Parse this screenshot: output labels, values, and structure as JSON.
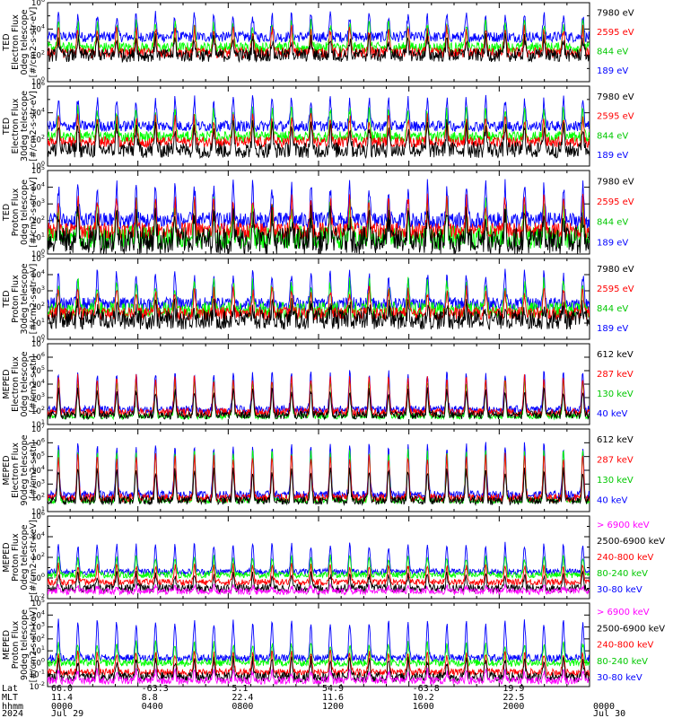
{
  "chart_data": [
    {
      "type": "line",
      "ylabel": [
        "TED",
        "Electron Flux",
        "0deg telescope",
        "[#/cm2-s-str-eV]"
      ],
      "ylog": true,
      "ylim_exp": [
        0,
        6
      ],
      "tick_exps": [
        0,
        2,
        4,
        6
      ],
      "series": [
        {
          "name": "7980 eV",
          "color": "#000000",
          "base_exp": 2.0,
          "peak_exp": 3.2,
          "noise": 0.5
        },
        {
          "name": "2595 eV",
          "color": "#ff0000",
          "base_exp": 2.2,
          "peak_exp": 4.0,
          "noise": 0.4
        },
        {
          "name": "844 eV",
          "color": "#00ff00",
          "base_exp": 2.6,
          "peak_exp": 4.4,
          "noise": 0.4
        },
        {
          "name": "189 eV",
          "color": "#0000ff",
          "base_exp": 3.4,
          "peak_exp": 5.0,
          "noise": 0.4
        }
      ]
    },
    {
      "type": "line",
      "ylabel": [
        "TED",
        "Electron Flux",
        "30deg telescope",
        "[#/cm2-s-str-eV]"
      ],
      "ylog": true,
      "ylim_exp": [
        0,
        6
      ],
      "tick_exps": [
        0,
        2,
        4,
        6
      ],
      "series": [
        {
          "name": "7980 eV",
          "color": "#000000",
          "base_exp": 1.2,
          "peak_exp": 3.0,
          "noise": 0.6
        },
        {
          "name": "2595 eV",
          "color": "#ff0000",
          "base_exp": 1.8,
          "peak_exp": 3.6,
          "noise": 0.4
        },
        {
          "name": "844 eV",
          "color": "#00ff00",
          "base_exp": 2.2,
          "peak_exp": 4.2,
          "noise": 0.4
        },
        {
          "name": "189 eV",
          "color": "#0000ff",
          "base_exp": 3.0,
          "peak_exp": 5.0,
          "noise": 0.4
        }
      ]
    },
    {
      "type": "line",
      "ylabel": [
        "TED",
        "Proton Flux",
        "0deg telescope",
        "[#/cm2-s-str-eV]"
      ],
      "ylog": true,
      "ylim_exp": [
        0,
        5
      ],
      "tick_exps": [
        0,
        1,
        2,
        3,
        4,
        5
      ],
      "series": [
        {
          "name": "7980 eV",
          "color": "#000000",
          "base_exp": 0.8,
          "peak_exp": 2.2,
          "noise": 0.8
        },
        {
          "name": "2595 eV",
          "color": "#ff0000",
          "base_exp": 1.4,
          "peak_exp": 3.2,
          "noise": 0.5
        },
        {
          "name": "844 eV",
          "color": "#00ff00",
          "base_exp": 1.0,
          "peak_exp": 2.8,
          "noise": 0.7
        },
        {
          "name": "189 eV",
          "color": "#0000ff",
          "base_exp": 2.0,
          "peak_exp": 4.0,
          "noise": 0.5
        }
      ]
    },
    {
      "type": "line",
      "ylabel": [
        "TED",
        "Proton Flux",
        "30deg telescope",
        "[#/cm2-s-str-eV]"
      ],
      "ylog": true,
      "ylim_exp": [
        0,
        5
      ],
      "tick_exps": [
        0,
        1,
        2,
        3,
        4,
        5
      ],
      "series": [
        {
          "name": "7980 eV",
          "color": "#000000",
          "base_exp": 1.2,
          "peak_exp": 2.0,
          "noise": 0.6
        },
        {
          "name": "2595 eV",
          "color": "#ff0000",
          "base_exp": 1.6,
          "peak_exp": 3.0,
          "noise": 0.4
        },
        {
          "name": "844 eV",
          "color": "#00ff00",
          "base_exp": 1.8,
          "peak_exp": 3.4,
          "noise": 0.5
        },
        {
          "name": "189 eV",
          "color": "#0000ff",
          "base_exp": 2.2,
          "peak_exp": 4.0,
          "noise": 0.4
        }
      ]
    },
    {
      "type": "line",
      "ylabel": [
        "MEPED",
        "Electron Flux",
        "0deg telescope",
        "[#/cm2-s-str]"
      ],
      "ylog": true,
      "ylim_exp": [
        1,
        7
      ],
      "tick_exps": [
        1,
        2,
        3,
        4,
        5,
        6,
        7
      ],
      "series": [
        {
          "name": "612 keV",
          "color": "#000000",
          "base_exp": 1.7,
          "peak_exp": 3.5,
          "noise": 0.3
        },
        {
          "name": "287 keV",
          "color": "#ff0000",
          "base_exp": 1.9,
          "peak_exp": 4.5,
          "noise": 0.3
        },
        {
          "name": "130 keV",
          "color": "#00ff00",
          "base_exp": 1.6,
          "peak_exp": 4.2,
          "noise": 0.2
        },
        {
          "name": "40 keV",
          "color": "#0000ff",
          "base_exp": 2.1,
          "peak_exp": 4.8,
          "noise": 0.3
        }
      ]
    },
    {
      "type": "line",
      "ylabel": [
        "MEPED",
        "Electron Flux",
        "90deg telescope",
        "[#/cm2-s-str]"
      ],
      "ylog": true,
      "ylim_exp": [
        1,
        7
      ],
      "tick_exps": [
        1,
        2,
        3,
        4,
        5,
        6,
        7
      ],
      "series": [
        {
          "name": "612 keV",
          "color": "#000000",
          "base_exp": 1.8,
          "peak_exp": 4.0,
          "noise": 0.3
        },
        {
          "name": "287 keV",
          "color": "#ff0000",
          "base_exp": 2.0,
          "peak_exp": 5.0,
          "noise": 0.3
        },
        {
          "name": "130 keV",
          "color": "#00ff00",
          "base_exp": 1.8,
          "peak_exp": 5.4,
          "noise": 0.2
        },
        {
          "name": "40 keV",
          "color": "#0000ff",
          "base_exp": 2.2,
          "peak_exp": 5.8,
          "noise": 0.3
        }
      ]
    },
    {
      "type": "line",
      "ylabel": [
        "MEPED",
        "Proton Flux",
        "0deg telescope",
        "[#/cm2-s-str-keV]"
      ],
      "ylog": true,
      "ylim_exp": [
        -2,
        6
      ],
      "tick_exps": [
        -2,
        0,
        2,
        4,
        6
      ],
      "series": [
        {
          "name": "> 6900 keV",
          "color": "#ff00ff",
          "base_exp": -1.3,
          "peak_exp": -0.8,
          "noise": 0.3
        },
        {
          "name": "2500-6900 keV",
          "color": "#000000",
          "base_exp": -1.0,
          "peak_exp": 0.3,
          "noise": 0.4
        },
        {
          "name": "240-800 keV",
          "color": "#ff0000",
          "base_exp": -0.4,
          "peak_exp": 1.2,
          "noise": 0.3
        },
        {
          "name": "80-240 keV",
          "color": "#00ff00",
          "base_exp": 0.3,
          "peak_exp": 2.0,
          "noise": 0.3
        },
        {
          "name": "30-80 keV",
          "color": "#0000ff",
          "base_exp": 0.6,
          "peak_exp": 3.2,
          "noise": 0.3
        }
      ]
    },
    {
      "type": "line",
      "ylabel": [
        "MEPED",
        "Proton Flux",
        "90deg telescope",
        "[#/cm2-s-str-keV]"
      ],
      "ylog": true,
      "ylim_exp": [
        -2,
        5
      ],
      "tick_exps": [
        -2,
        -1,
        0,
        1,
        2,
        3,
        4,
        5
      ],
      "series": [
        {
          "name": "> 6900 keV",
          "color": "#ff00ff",
          "base_exp": -1.5,
          "peak_exp": -0.7,
          "noise": 0.3
        },
        {
          "name": "2500-6900 keV",
          "color": "#000000",
          "base_exp": -1.2,
          "peak_exp": 0.2,
          "noise": 0.4
        },
        {
          "name": "240-800 keV",
          "color": "#ff0000",
          "base_exp": -0.8,
          "peak_exp": 0.8,
          "noise": 0.3
        },
        {
          "name": "80-240 keV",
          "color": "#00ff00",
          "base_exp": 0.0,
          "peak_exp": 1.6,
          "noise": 0.3
        },
        {
          "name": "30-80 keV",
          "color": "#0000ff",
          "base_exp": 0.4,
          "peak_exp": 3.4,
          "noise": 0.3
        }
      ]
    }
  ],
  "time_axis": {
    "row_labels": [
      "Lat",
      "MLT",
      "hhmm",
      "2024"
    ],
    "columns": [
      {
        "lat": "66.0",
        "mlt": "11.4",
        "hhmm": "0000",
        "date": "Jul 29"
      },
      {
        "lat": "-63.3",
        "mlt": "8.8",
        "hhmm": "0400",
        "date": ""
      },
      {
        "lat": "5.1",
        "mlt": "22.4",
        "hhmm": "0800",
        "date": ""
      },
      {
        "lat": "54.9",
        "mlt": "11.6",
        "hhmm": "1200",
        "date": ""
      },
      {
        "lat": "-63.8",
        "mlt": "10.2",
        "hhmm": "1600",
        "date": ""
      },
      {
        "lat": "19.9",
        "mlt": "22.5",
        "hhmm": "2000",
        "date": ""
      },
      {
        "lat": "",
        "mlt": "",
        "hhmm": "0000",
        "date": "Jul 30"
      }
    ]
  }
}
